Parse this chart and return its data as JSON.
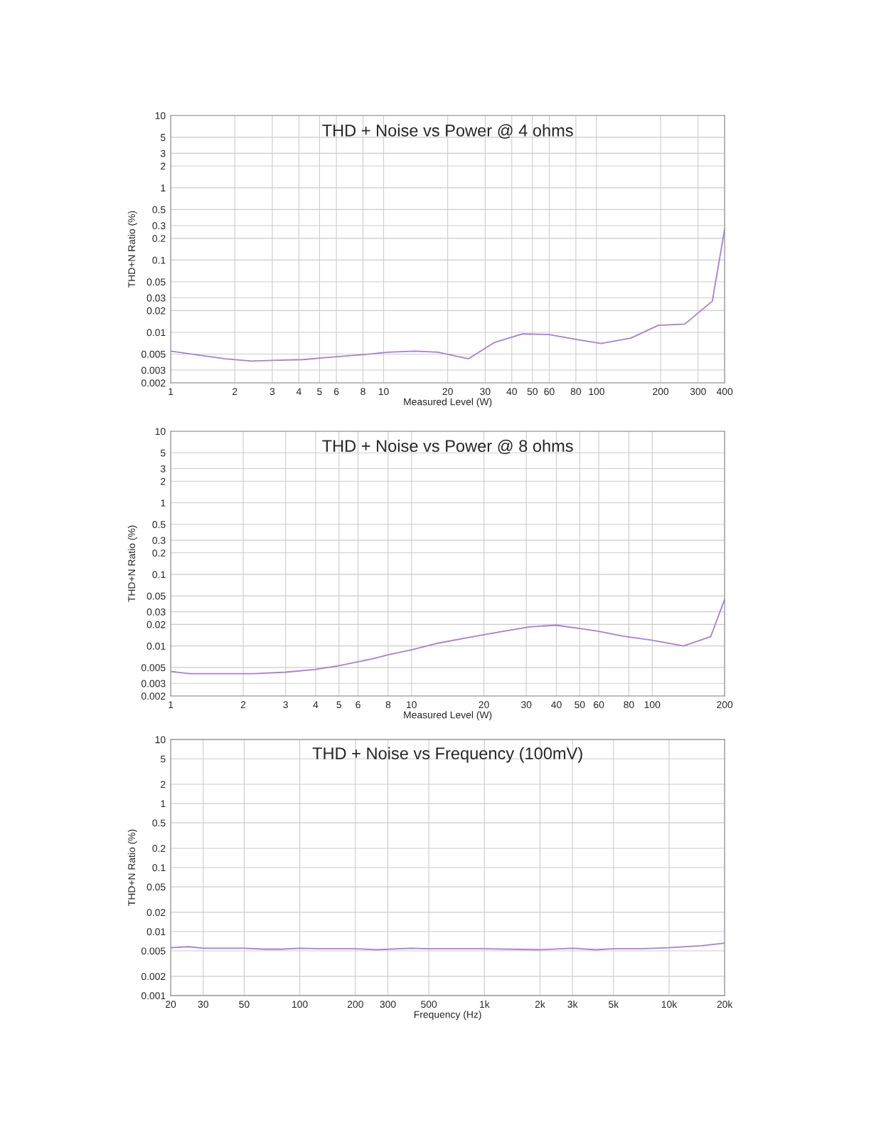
{
  "chart_data": [
    {
      "type": "line",
      "title": "THD + Noise vs Power @ 4 ohms",
      "xlabel": "Measured Level (W)",
      "ylabel": "THD+N Ratio (%)",
      "log": "xy",
      "grid": true,
      "x": [
        1,
        1.8,
        2.4,
        3,
        4.2,
        5.5,
        8,
        10.5,
        14,
        18,
        25,
        33,
        45,
        60,
        80,
        105,
        145,
        195,
        260,
        350,
        400
      ],
      "series": [
        {
          "color": "#a77fd6",
          "values": [
            0.0055,
            0.0043,
            0.004,
            0.0041,
            0.0042,
            0.0045,
            0.0049,
            0.0053,
            0.0055,
            0.0053,
            0.0043,
            0.0072,
            0.0095,
            0.0093,
            0.008,
            0.007,
            0.0083,
            0.0125,
            0.013,
            0.027,
            0.27
          ]
        }
      ],
      "xlim": [
        1,
        400
      ],
      "xticks": [
        1,
        2,
        3,
        4,
        5,
        6,
        8,
        10,
        20,
        30,
        40,
        50,
        60,
        80,
        100,
        200,
        300,
        400
      ],
      "ylim": [
        0.002,
        10
      ],
      "yticks": [
        0.002,
        0.003,
        0.005,
        0.01,
        0.02,
        0.03,
        0.05,
        0.1,
        0.2,
        0.3,
        0.5,
        1,
        2,
        3,
        5,
        10
      ]
    },
    {
      "type": "line",
      "title": "THD + Noise vs Power @ 8 ohms",
      "xlabel": "Measured Level (W)",
      "ylabel": "THD+N Ratio (%)",
      "log": "xy",
      "grid": true,
      "x": [
        1,
        1.2,
        2.2,
        3,
        4,
        5,
        6,
        7,
        8,
        10,
        13,
        18,
        24,
        31,
        40,
        50,
        60,
        75,
        100,
        135,
        175,
        200
      ],
      "series": [
        {
          "color": "#a77fd6",
          "values": [
            0.0044,
            0.0041,
            0.0041,
            0.0043,
            0.0047,
            0.0053,
            0.006,
            0.0067,
            0.0075,
            0.0088,
            0.011,
            0.0135,
            0.016,
            0.0185,
            0.0195,
            0.0175,
            0.016,
            0.0138,
            0.012,
            0.01,
            0.0135,
            0.045
          ]
        }
      ],
      "xlim": [
        1,
        200
      ],
      "xticks": [
        1,
        2,
        3,
        4,
        5,
        6,
        8,
        10,
        20,
        30,
        40,
        50,
        60,
        80,
        100,
        200
      ],
      "ylim": [
        0.002,
        10
      ],
      "yticks": [
        0.002,
        0.003,
        0.005,
        0.01,
        0.02,
        0.03,
        0.05,
        0.1,
        0.2,
        0.3,
        0.5,
        1,
        2,
        3,
        5,
        10
      ]
    },
    {
      "type": "line",
      "title": "THD + Noise vs Frequency (100mV)",
      "xlabel": "Frequency (Hz)",
      "ylabel": "THD+N Ratio (%)",
      "log": "xy",
      "grid": true,
      "x": [
        20,
        25,
        30,
        50,
        65,
        80,
        100,
        130,
        200,
        260,
        400,
        500,
        1000,
        2000,
        3000,
        4000,
        5000,
        7000,
        10000,
        15000,
        20000
      ],
      "series": [
        {
          "color": "#a77fd6",
          "values": [
            0.0056,
            0.0058,
            0.0055,
            0.0055,
            0.0053,
            0.0053,
            0.0055,
            0.0054,
            0.0054,
            0.0052,
            0.0055,
            0.0054,
            0.0054,
            0.0052,
            0.0055,
            0.0052,
            0.0054,
            0.0054,
            0.0056,
            0.006,
            0.0066
          ]
        }
      ],
      "xlim": [
        20,
        20000
      ],
      "xticks": [
        20,
        30,
        50,
        100,
        200,
        300,
        500,
        {
          "value": 1000,
          "label": "1k"
        },
        {
          "value": 2000,
          "label": "2k"
        },
        {
          "value": 3000,
          "label": "3k"
        },
        {
          "value": 5000,
          "label": "5k"
        },
        {
          "value": 10000,
          "label": "10k"
        },
        {
          "value": 20000,
          "label": "20k"
        }
      ],
      "ylim": [
        0.001,
        10
      ],
      "yticks": [
        0.001,
        0.002,
        0.005,
        0.01,
        0.02,
        0.05,
        0.1,
        0.2,
        0.5,
        1,
        2,
        5,
        10
      ]
    }
  ]
}
